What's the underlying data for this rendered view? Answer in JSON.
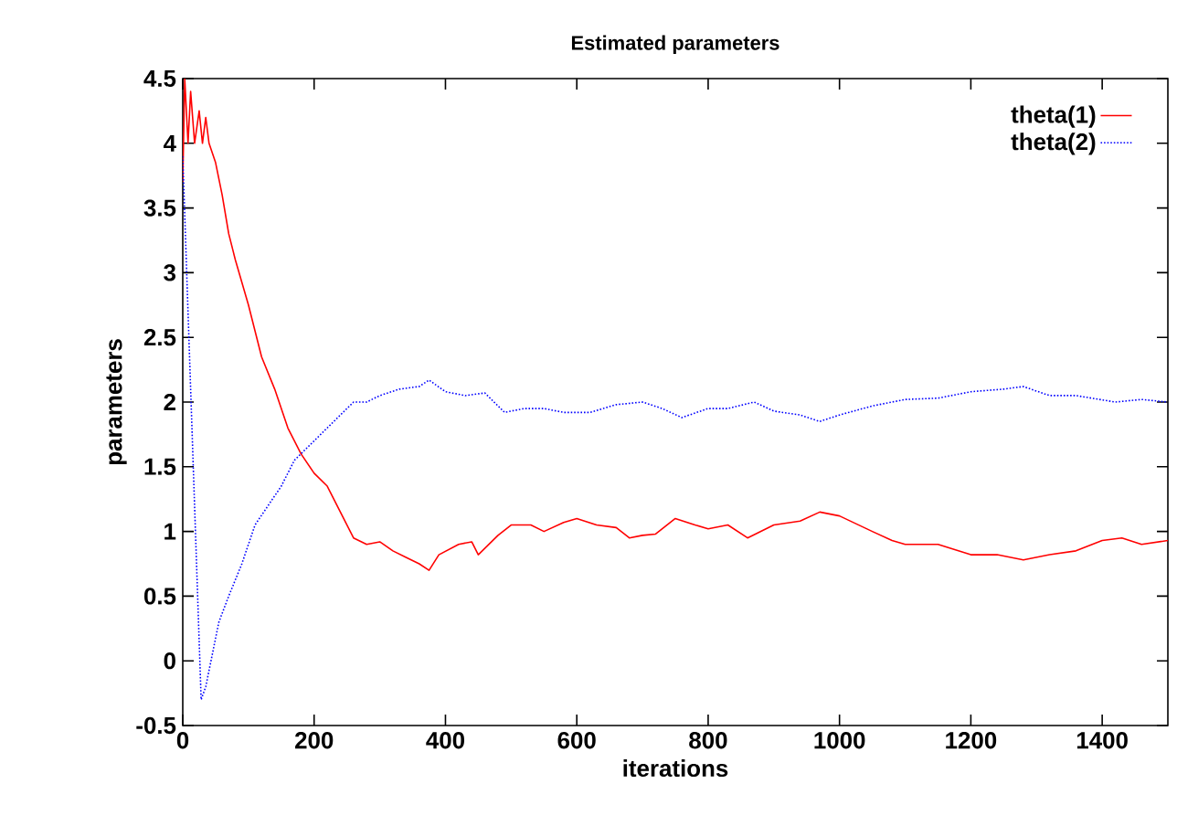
{
  "chart_data": {
    "type": "line",
    "title": "Estimated parameters",
    "xlabel": "iterations",
    "ylabel": "parameters",
    "xlim": [
      0,
      1500
    ],
    "ylim": [
      -0.5,
      4.5
    ],
    "xticks": [
      0,
      200,
      400,
      600,
      800,
      1000,
      1200,
      1400
    ],
    "yticks": [
      -0.5,
      0,
      0.5,
      1,
      1.5,
      2,
      2.5,
      3,
      3.5,
      4,
      4.5
    ],
    "grid": false,
    "legend": "top right",
    "marker": "none",
    "series": [
      {
        "name": "theta(1)",
        "color": "#ff0000",
        "line_style": "solid",
        "x": [
          0,
          3,
          8,
          12,
          18,
          25,
          30,
          35,
          40,
          50,
          60,
          70,
          80,
          100,
          120,
          140,
          160,
          180,
          200,
          220,
          240,
          260,
          280,
          300,
          320,
          340,
          360,
          375,
          390,
          420,
          440,
          450,
          480,
          500,
          530,
          550,
          580,
          600,
          630,
          660,
          680,
          700,
          720,
          750,
          780,
          800,
          830,
          860,
          900,
          940,
          970,
          1000,
          1050,
          1080,
          1100,
          1150,
          1200,
          1240,
          1280,
          1320,
          1360,
          1400,
          1430,
          1460,
          1500
        ],
        "values": [
          3.7,
          4.5,
          4.0,
          4.4,
          4.0,
          4.25,
          4.0,
          4.2,
          4.0,
          3.85,
          3.6,
          3.3,
          3.1,
          2.75,
          2.35,
          2.1,
          1.8,
          1.6,
          1.45,
          1.35,
          1.15,
          0.95,
          0.9,
          0.92,
          0.85,
          0.8,
          0.75,
          0.7,
          0.82,
          0.9,
          0.92,
          0.82,
          0.97,
          1.05,
          1.05,
          1.0,
          1.07,
          1.1,
          1.05,
          1.03,
          0.95,
          0.97,
          0.98,
          1.1,
          1.05,
          1.02,
          1.05,
          0.95,
          1.05,
          1.08,
          1.15,
          1.12,
          1.0,
          0.93,
          0.9,
          0.9,
          0.82,
          0.82,
          0.78,
          0.82,
          0.85,
          0.93,
          0.95,
          0.9,
          0.93
        ]
      },
      {
        "name": "theta(2)",
        "color": "#0000ff",
        "line_style": "dotted",
        "x": [
          0,
          28,
          35,
          45,
          55,
          70,
          90,
          110,
          130,
          150,
          170,
          190,
          210,
          240,
          260,
          280,
          300,
          330,
          360,
          375,
          400,
          430,
          460,
          490,
          520,
          550,
          580,
          620,
          660,
          700,
          730,
          760,
          800,
          830,
          870,
          900,
          940,
          970,
          1000,
          1050,
          1100,
          1150,
          1200,
          1250,
          1280,
          1320,
          1360,
          1420,
          1460,
          1500
        ],
        "values": [
          3.9,
          -0.3,
          -0.2,
          0.05,
          0.3,
          0.5,
          0.75,
          1.05,
          1.2,
          1.35,
          1.55,
          1.65,
          1.75,
          1.9,
          2.0,
          2.0,
          2.05,
          2.1,
          2.12,
          2.17,
          2.08,
          2.05,
          2.07,
          1.92,
          1.95,
          1.95,
          1.92,
          1.92,
          1.98,
          2.0,
          1.95,
          1.88,
          1.95,
          1.95,
          2.0,
          1.93,
          1.9,
          1.85,
          1.9,
          1.97,
          2.02,
          2.03,
          2.08,
          2.1,
          2.12,
          2.05,
          2.05,
          2.0,
          2.02,
          2.0
        ]
      }
    ]
  }
}
